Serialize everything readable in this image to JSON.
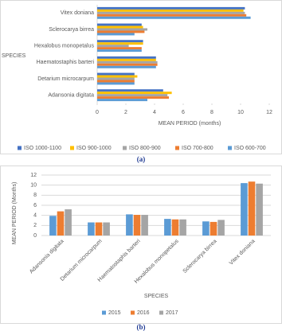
{
  "chart_data": [
    {
      "type": "bar",
      "orientation": "horizontal",
      "caption": "(a)",
      "y_label": "SPECIES",
      "x_label": "MEAN PERIOD (months)",
      "categories": [
        "Vitex doniana",
        "Sclerocarya birrea",
        "Hexalobus monopetalus",
        "Haematostaphis barteri",
        "Detarium microcarpum",
        "Adansonia digitata"
      ],
      "series": [
        {
          "name": "ISO 1000-1100",
          "color": "#4472c4",
          "values": [
            10.3,
            3.1,
            3.2,
            4.1,
            2.6,
            4.6
          ]
        },
        {
          "name": "ISO 900-1000",
          "color": "#ffc000",
          "values": [
            10.2,
            3.2,
            3.2,
            4.1,
            2.8,
            5.2
          ]
        },
        {
          "name": "ISO 800-900",
          "color": "#a5a5a5",
          "values": [
            10.3,
            3.5,
            2.2,
            4.2,
            2.6,
            4.9
          ]
        },
        {
          "name": "ISO 700-800",
          "color": "#ed7d31",
          "values": [
            10.4,
            3.3,
            3.1,
            4.2,
            2.6,
            5.0
          ]
        },
        {
          "name": "ISO 600-700",
          "color": "#5b9bd5",
          "values": [
            10.7,
            2.6,
            3.1,
            4.1,
            2.6,
            3.5
          ]
        }
      ],
      "xlim": [
        0,
        12
      ],
      "xticks": [
        0,
        2,
        4,
        6,
        8,
        10,
        12
      ],
      "grid": false
    },
    {
      "type": "bar",
      "orientation": "vertical",
      "caption": "(b)",
      "y_label": "MEAN PERIOD (Months)",
      "x_label": "SPECIES",
      "categories": [
        "Adansonia digitata",
        "Detarium microcarpum",
        "Haematostaphis barteri",
        "Hexalobus monopetalus",
        "Sclerocarya birrea",
        "Vitex doniana"
      ],
      "series": [
        {
          "name": "2015",
          "color": "#5b9bd5",
          "values": [
            3.9,
            2.6,
            4.2,
            3.3,
            2.8,
            10.4
          ]
        },
        {
          "name": "2016",
          "color": "#ed7d31",
          "values": [
            4.8,
            2.6,
            4.1,
            3.2,
            2.7,
            10.7
          ]
        },
        {
          "name": "2017",
          "color": "#a5a5a5",
          "values": [
            5.2,
            2.6,
            4.1,
            3.2,
            3.1,
            10.3
          ]
        }
      ],
      "ylim": [
        0,
        12
      ],
      "yticks": [
        0,
        2,
        4,
        6,
        8,
        10,
        12
      ],
      "grid": true
    }
  ]
}
